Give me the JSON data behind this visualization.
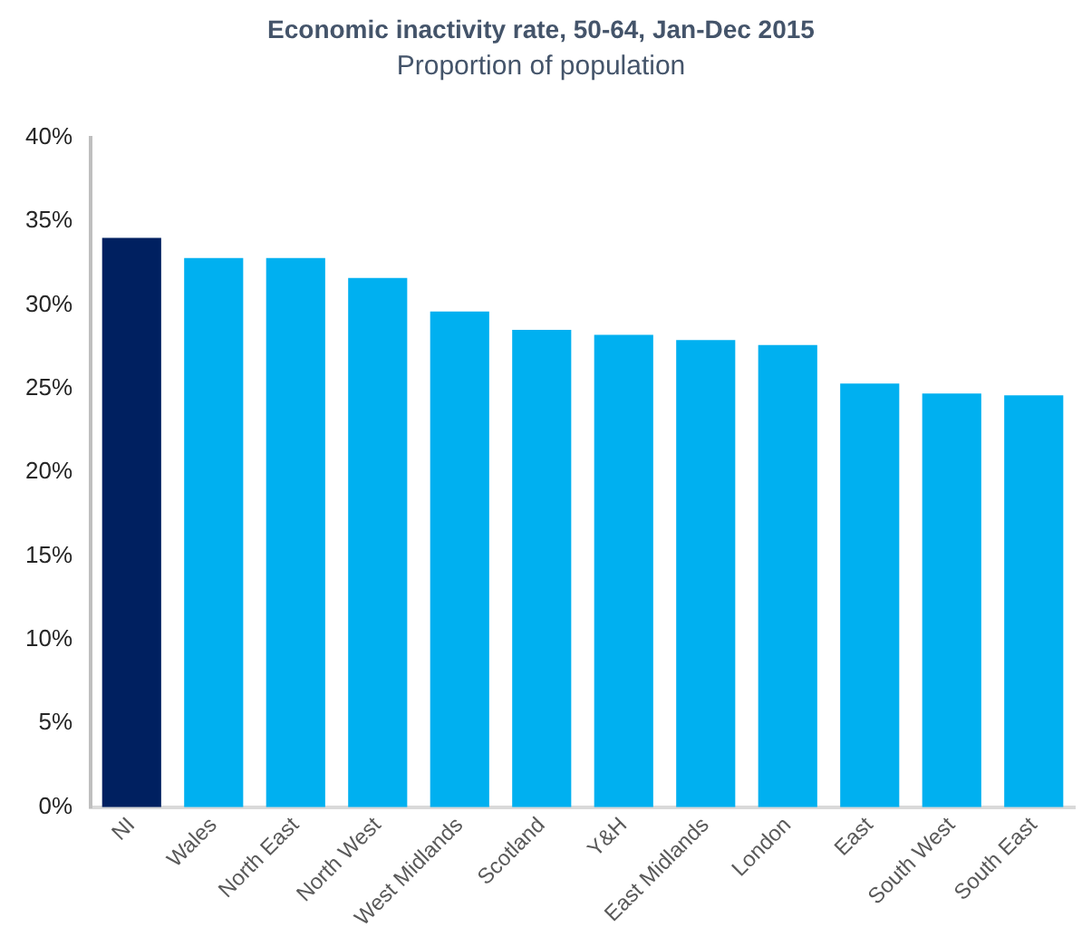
{
  "chart_data": {
    "type": "bar",
    "title": "Economic inactivity rate, 50-64, Jan-Dec 2015",
    "subtitle": "Proportion of population",
    "categories": [
      "NI",
      "Wales",
      "North East",
      "North West",
      "West Midlands",
      "Scotland",
      "Y&H",
      "East Midlands",
      "London",
      "East",
      "South West",
      "South East"
    ],
    "values": [
      34.0,
      32.8,
      32.8,
      31.6,
      29.6,
      28.5,
      28.2,
      27.9,
      27.6,
      25.3,
      24.7,
      24.6
    ],
    "colors": [
      "#002060",
      "#00b0f0",
      "#00b0f0",
      "#00b0f0",
      "#00b0f0",
      "#00b0f0",
      "#00b0f0",
      "#00b0f0",
      "#00b0f0",
      "#00b0f0",
      "#00b0f0",
      "#00b0f0"
    ],
    "ylim": [
      0,
      40
    ],
    "yticks": [
      {
        "value": 0,
        "label": "0%"
      },
      {
        "value": 5,
        "label": "5%"
      },
      {
        "value": 10,
        "label": "10%"
      },
      {
        "value": 15,
        "label": "15%"
      },
      {
        "value": 20,
        "label": "20%"
      },
      {
        "value": 25,
        "label": "25%"
      },
      {
        "value": 30,
        "label": "30%"
      },
      {
        "value": 35,
        "label": "35%"
      },
      {
        "value": 40,
        "label": "40%"
      }
    ],
    "grid": false,
    "legend": false
  }
}
